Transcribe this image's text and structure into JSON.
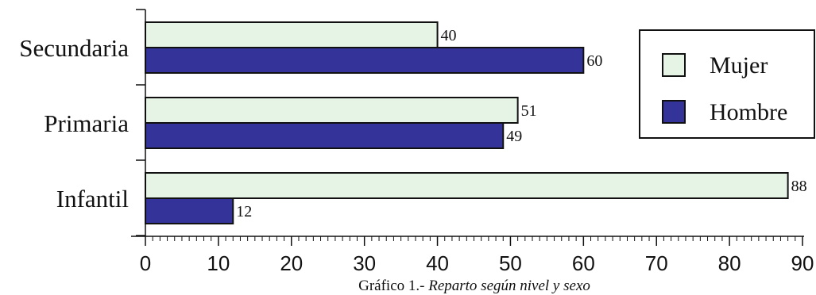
{
  "chart_data": {
    "type": "bar",
    "orientation": "horizontal",
    "categories": [
      "Secundaria",
      "Primaria",
      "Infantil"
    ],
    "series": [
      {
        "name": "Mujer",
        "values": [
          40,
          51,
          88
        ],
        "color": "#e6f4e6"
      },
      {
        "name": "Hombre",
        "values": [
          60,
          49,
          12
        ],
        "color": "#33339a"
      }
    ],
    "xlim": [
      0,
      90
    ],
    "x_ticks": [
      0,
      10,
      20,
      30,
      40,
      50,
      60,
      70,
      80,
      90
    ],
    "legend_position": "right",
    "grid": false
  },
  "caption": {
    "prefix": "Gráfico 1.- ",
    "text": "Reparto según nivel y sexo"
  }
}
